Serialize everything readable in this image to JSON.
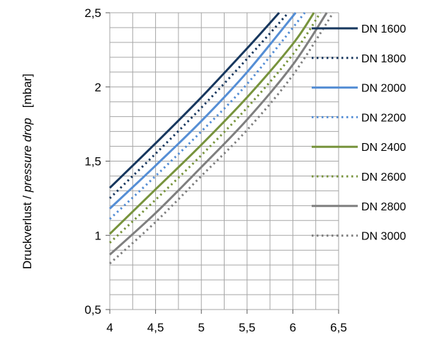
{
  "chart_data": {
    "type": "line",
    "title": "",
    "ylabel_parts": [
      "Druckverlust / ",
      "pressure drop",
      "   [mbar]"
    ],
    "xlabel": "",
    "xlim": [
      4,
      6.5
    ],
    "ylim": [
      0.5,
      2.5
    ],
    "x_major_ticks": [
      4,
      4.5,
      5,
      5.5,
      6,
      6.5
    ],
    "x_tick_labels": [
      "4",
      "4,5",
      "5",
      "5,5",
      "6",
      "6,5"
    ],
    "x_minor_step": 0.25,
    "y_major_ticks": [
      0.5,
      1,
      1.5,
      2,
      2.5
    ],
    "y_tick_labels": [
      "0,5",
      "1",
      "1,5",
      "2",
      "2,5"
    ],
    "y_minor_step": 0.1,
    "grid": true,
    "legend_position": "right",
    "series": [
      {
        "name": "DN 1600",
        "color": "#17375e",
        "dash": "solid",
        "x": [
          4,
          4.5,
          5,
          5.5,
          5.85
        ],
        "y": [
          1.32,
          1.62,
          1.93,
          2.26,
          2.5
        ]
      },
      {
        "name": "DN 1800",
        "color": "#17375e",
        "dash": "dotted",
        "x": [
          4,
          4.5,
          5,
          5.5,
          5.95
        ],
        "y": [
          1.25,
          1.55,
          1.86,
          2.19,
          2.5
        ]
      },
      {
        "name": "DN 2000",
        "color": "#558ed5",
        "dash": "solid",
        "x": [
          4,
          4.5,
          5,
          5.5,
          6.03
        ],
        "y": [
          1.18,
          1.47,
          1.77,
          2.1,
          2.5
        ]
      },
      {
        "name": "DN 2200",
        "color": "#558ed5",
        "dash": "dotted",
        "x": [
          4,
          4.5,
          5,
          5.5,
          6.13
        ],
        "y": [
          1.11,
          1.4,
          1.7,
          2.02,
          2.5
        ]
      },
      {
        "name": "DN 2400",
        "color": "#77933c",
        "dash": "solid",
        "x": [
          4,
          4.5,
          5,
          5.5,
          6,
          6.23
        ],
        "y": [
          1.01,
          1.31,
          1.61,
          1.93,
          2.29,
          2.5
        ]
      },
      {
        "name": "DN 2600",
        "color": "#77933c",
        "dash": "dotted",
        "x": [
          4,
          4.5,
          5,
          5.5,
          6,
          6.3
        ],
        "y": [
          0.95,
          1.24,
          1.54,
          1.86,
          2.22,
          2.5
        ]
      },
      {
        "name": "DN 2800",
        "color": "#7f7f7f",
        "dash": "solid",
        "x": [
          4,
          4.5,
          5,
          5.5,
          6,
          6.37
        ],
        "y": [
          0.87,
          1.15,
          1.46,
          1.78,
          2.15,
          2.5
        ]
      },
      {
        "name": "DN 3000",
        "color": "#7f7f7f",
        "dash": "dotted",
        "x": [
          4,
          4.5,
          5,
          5.5,
          6,
          6.44
        ],
        "y": [
          0.81,
          1.09,
          1.4,
          1.71,
          2.08,
          2.5
        ]
      }
    ]
  }
}
